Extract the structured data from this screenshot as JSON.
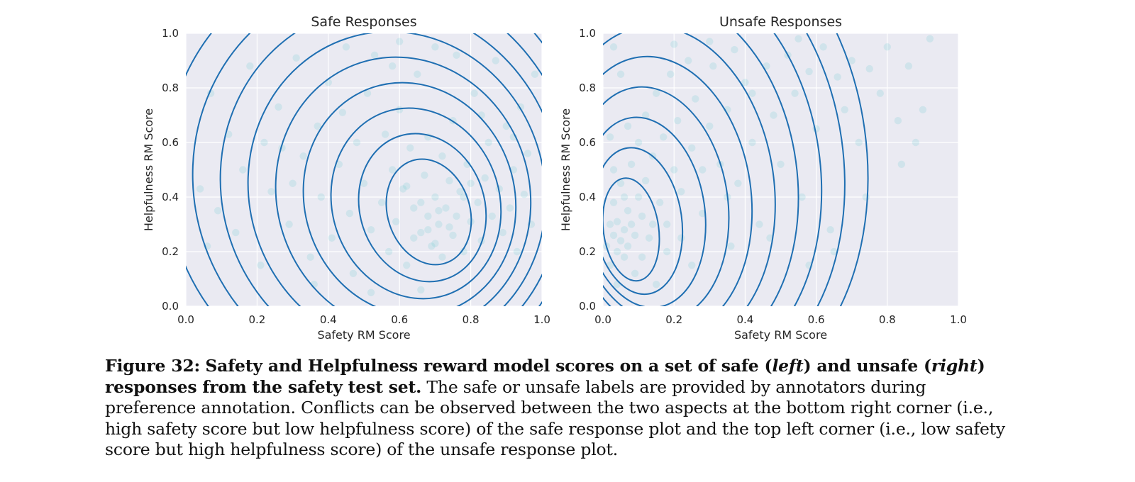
{
  "chart_data": [
    {
      "type": "scatter",
      "overlay": "kde-contour",
      "title": "Safe Responses",
      "xlabel": "Safety RM Score",
      "ylabel": "Helpfulness RM Score",
      "xlim": [
        0.0,
        1.0
      ],
      "ylim": [
        0.0,
        1.0
      ],
      "xticks": [
        "0.0",
        "0.2",
        "0.4",
        "0.6",
        "0.8",
        "1.0"
      ],
      "yticks": [
        "0.0",
        "0.2",
        "0.4",
        "0.6",
        "0.8",
        "1.0"
      ],
      "grid": true,
      "point_color": "#5fc6cf",
      "contour_color": "#1f6fb2",
      "density_peak": {
        "x": 0.7,
        "y": 0.33
      },
      "points": [
        [
          0.04,
          0.43
        ],
        [
          0.06,
          0.22
        ],
        [
          0.07,
          0.78
        ],
        [
          0.09,
          0.35
        ],
        [
          0.12,
          0.63
        ],
        [
          0.14,
          0.27
        ],
        [
          0.16,
          0.5
        ],
        [
          0.18,
          0.88
        ],
        [
          0.21,
          0.15
        ],
        [
          0.22,
          0.6
        ],
        [
          0.24,
          0.42
        ],
        [
          0.26,
          0.73
        ],
        [
          0.29,
          0.3
        ],
        [
          0.31,
          0.91
        ],
        [
          0.33,
          0.55
        ],
        [
          0.35,
          0.18
        ],
        [
          0.37,
          0.66
        ],
        [
          0.38,
          0.4
        ],
        [
          0.4,
          0.82
        ],
        [
          0.41,
          0.25
        ],
        [
          0.43,
          0.52
        ],
        [
          0.44,
          0.71
        ],
        [
          0.46,
          0.34
        ],
        [
          0.47,
          0.12
        ],
        [
          0.48,
          0.6
        ],
        [
          0.5,
          0.45
        ],
        [
          0.51,
          0.78
        ],
        [
          0.52,
          0.28
        ],
        [
          0.53,
          0.92
        ],
        [
          0.55,
          0.38
        ],
        [
          0.56,
          0.63
        ],
        [
          0.57,
          0.2
        ],
        [
          0.58,
          0.5
        ],
        [
          0.59,
          0.31
        ],
        [
          0.6,
          0.72
        ],
        [
          0.61,
          0.43
        ],
        [
          0.62,
          0.15
        ],
        [
          0.63,
          0.58
        ],
        [
          0.64,
          0.36
        ],
        [
          0.65,
          0.85
        ],
        [
          0.66,
          0.27
        ],
        [
          0.67,
          0.48
        ],
        [
          0.68,
          0.33
        ],
        [
          0.68,
          0.62
        ],
        [
          0.69,
          0.22
        ],
        [
          0.7,
          0.4
        ],
        [
          0.71,
          0.3
        ],
        [
          0.72,
          0.55
        ],
        [
          0.72,
          0.18
        ],
        [
          0.73,
          0.36
        ],
        [
          0.74,
          0.46
        ],
        [
          0.75,
          0.26
        ],
        [
          0.75,
          0.68
        ],
        [
          0.76,
          0.33
        ],
        [
          0.77,
          0.42
        ],
        [
          0.78,
          0.2
        ],
        [
          0.79,
          0.52
        ],
        [
          0.8,
          0.31
        ],
        [
          0.81,
          0.78
        ],
        [
          0.82,
          0.38
        ],
        [
          0.83,
          0.24
        ],
        [
          0.84,
          0.47
        ],
        [
          0.85,
          0.6
        ],
        [
          0.86,
          0.33
        ],
        [
          0.87,
          0.9
        ],
        [
          0.88,
          0.43
        ],
        [
          0.89,
          0.27
        ],
        [
          0.9,
          0.66
        ],
        [
          0.91,
          0.36
        ],
        [
          0.92,
          0.5
        ],
        [
          0.93,
          0.2
        ],
        [
          0.94,
          0.73
        ],
        [
          0.95,
          0.41
        ],
        [
          0.96,
          0.56
        ],
        [
          0.97,
          0.3
        ],
        [
          0.98,
          0.85
        ],
        [
          0.45,
          0.95
        ],
        [
          0.6,
          0.97
        ],
        [
          0.7,
          0.95
        ],
        [
          0.52,
          0.05
        ],
        [
          0.36,
          0.08
        ],
        [
          0.66,
          0.06
        ],
        [
          0.3,
          0.45
        ],
        [
          0.27,
          0.58
        ],
        [
          0.58,
          0.88
        ],
        [
          0.76,
          0.92
        ],
        [
          0.83,
          0.7
        ],
        [
          0.92,
          0.62
        ],
        [
          0.62,
          0.44
        ],
        [
          0.74,
          0.29
        ],
        [
          0.68,
          0.28
        ],
        [
          0.71,
          0.35
        ],
        [
          0.66,
          0.38
        ],
        [
          0.78,
          0.4
        ],
        [
          0.64,
          0.25
        ],
        [
          0.7,
          0.23
        ],
        [
          0.8,
          0.45
        ]
      ]
    },
    {
      "type": "scatter",
      "overlay": "kde-contour",
      "title": "Unsafe Responses",
      "xlabel": "Safety RM Score",
      "ylabel": "Helpfulness RM Score",
      "xlim": [
        0.0,
        1.0
      ],
      "ylim": [
        0.0,
        1.0
      ],
      "xticks": [
        "0.0",
        "0.2",
        "0.4",
        "0.6",
        "0.8",
        "1.0"
      ],
      "yticks": [
        "0.0",
        "0.2",
        "0.4",
        "0.6",
        "0.8",
        "1.0"
      ],
      "grid": true,
      "point_color": "#5fc6cf",
      "contour_color": "#1f6fb2",
      "density_peak": {
        "x": 0.06,
        "y": 0.25
      },
      "points": [
        [
          0.01,
          0.22
        ],
        [
          0.02,
          0.3
        ],
        [
          0.02,
          0.15
        ],
        [
          0.03,
          0.26
        ],
        [
          0.03,
          0.38
        ],
        [
          0.04,
          0.2
        ],
        [
          0.04,
          0.31
        ],
        [
          0.05,
          0.24
        ],
        [
          0.05,
          0.45
        ],
        [
          0.06,
          0.28
        ],
        [
          0.06,
          0.18
        ],
        [
          0.07,
          0.35
        ],
        [
          0.07,
          0.22
        ],
        [
          0.08,
          0.52
        ],
        [
          0.08,
          0.3
        ],
        [
          0.09,
          0.26
        ],
        [
          0.1,
          0.4
        ],
        [
          0.1,
          0.6
        ],
        [
          0.11,
          0.33
        ],
        [
          0.12,
          0.7
        ],
        [
          0.12,
          0.46
        ],
        [
          0.13,
          0.25
        ],
        [
          0.14,
          0.55
        ],
        [
          0.15,
          0.78
        ],
        [
          0.16,
          0.38
        ],
        [
          0.17,
          0.62
        ],
        [
          0.18,
          0.3
        ],
        [
          0.19,
          0.85
        ],
        [
          0.2,
          0.5
        ],
        [
          0.21,
          0.68
        ],
        [
          0.22,
          0.42
        ],
        [
          0.24,
          0.9
        ],
        [
          0.25,
          0.58
        ],
        [
          0.26,
          0.76
        ],
        [
          0.28,
          0.34
        ],
        [
          0.3,
          0.66
        ],
        [
          0.31,
          0.88
        ],
        [
          0.33,
          0.52
        ],
        [
          0.35,
          0.72
        ],
        [
          0.37,
          0.94
        ],
        [
          0.38,
          0.45
        ],
        [
          0.4,
          0.82
        ],
        [
          0.42,
          0.6
        ],
        [
          0.44,
          0.3
        ],
        [
          0.46,
          0.88
        ],
        [
          0.48,
          0.7
        ],
        [
          0.5,
          0.52
        ],
        [
          0.52,
          0.92
        ],
        [
          0.54,
          0.78
        ],
        [
          0.56,
          0.4
        ],
        [
          0.58,
          0.86
        ],
        [
          0.6,
          0.65
        ],
        [
          0.62,
          0.95
        ],
        [
          0.64,
          0.28
        ],
        [
          0.66,
          0.84
        ],
        [
          0.68,
          0.72
        ],
        [
          0.7,
          0.9
        ],
        [
          0.72,
          0.6
        ],
        [
          0.75,
          0.87
        ],
        [
          0.78,
          0.78
        ],
        [
          0.8,
          0.95
        ],
        [
          0.83,
          0.68
        ],
        [
          0.86,
          0.88
        ],
        [
          0.88,
          0.6
        ],
        [
          0.9,
          0.72
        ],
        [
          0.92,
          0.98
        ],
        [
          0.03,
          0.95
        ],
        [
          0.05,
          0.85
        ],
        [
          0.02,
          0.62
        ],
        [
          0.09,
          0.12
        ],
        [
          0.15,
          0.08
        ],
        [
          0.25,
          0.15
        ],
        [
          0.36,
          0.22
        ],
        [
          0.47,
          0.25
        ],
        [
          0.58,
          0.15
        ],
        [
          0.65,
          0.2
        ],
        [
          0.04,
          0.08
        ],
        [
          0.11,
          0.18
        ],
        [
          0.06,
          0.4
        ],
        [
          0.14,
          0.3
        ],
        [
          0.18,
          0.2
        ],
        [
          0.03,
          0.5
        ],
        [
          0.07,
          0.66
        ],
        [
          0.22,
          0.25
        ],
        [
          0.28,
          0.5
        ],
        [
          0.35,
          0.4
        ],
        [
          0.42,
          0.78
        ],
        [
          0.3,
          0.97
        ],
        [
          0.2,
          0.96
        ],
        [
          0.55,
          0.98
        ],
        [
          0.74,
          0.4
        ],
        [
          0.84,
          0.52
        ]
      ]
    }
  ],
  "caption": {
    "label": "Figure 32:",
    "bold_part_1": "Safety and Helpfulness reward model scores on a set of safe (",
    "italic_left": "left",
    "bold_part_2": ") and unsafe (",
    "italic_right": "right",
    "bold_part_3": ") responses from the safety test set.",
    "text": "The safe or unsafe labels are provided by annotators during preference annotation. Conflicts can be observed between the two aspects at the bottom right corner (i.e., high safety score but low helpfulness score) of the safe response plot and the top left corner (i.e., low safety score but high helpfulness score) of the unsafe response plot."
  }
}
